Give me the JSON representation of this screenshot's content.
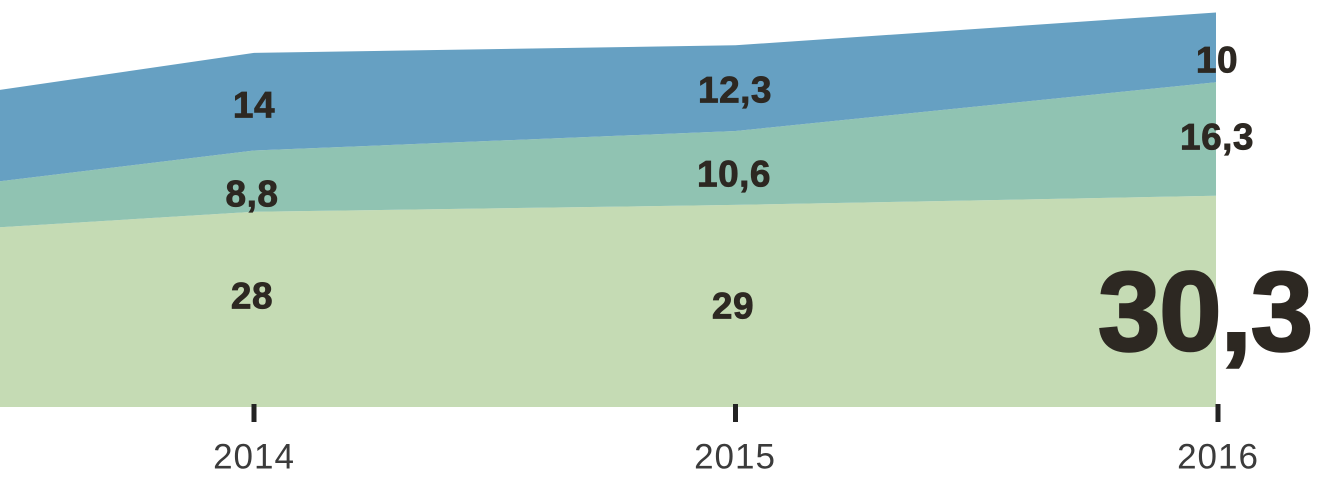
{
  "canvas": {
    "background": "#ffffff"
  },
  "chart_data": {
    "type": "area",
    "stacked": true,
    "title": "",
    "x_categories": [
      "2014",
      "2015",
      "2016"
    ],
    "series": [
      {
        "name": "bottom-series",
        "color": "#c5dbb4",
        "values": [
          28,
          29,
          30.3
        ],
        "labels": [
          "28",
          "29",
          "30,3"
        ]
      },
      {
        "name": "middle-series",
        "color": "#90c3b2",
        "values": [
          8.8,
          10.6,
          16.3
        ],
        "labels": [
          "8,8",
          "10,6",
          "16,3"
        ]
      },
      {
        "name": "top-series",
        "color": "#66a0c2",
        "values": [
          14,
          12.3,
          10
        ],
        "labels": [
          "14",
          "12,3",
          "10"
        ]
      }
    ],
    "left_edge_values_estimated": [
      25.8,
      6.6,
      13.1
    ],
    "value_label_color": "#2d2822",
    "emphasized_value_label": "30,3",
    "axis": {
      "x_tick_labels": [
        "2014",
        "2015",
        "2016"
      ],
      "tick_color": "#232323",
      "tick_label_color": "#3b3b3b",
      "y_axis_visible": false,
      "grid": false
    },
    "legend_visible": false
  }
}
